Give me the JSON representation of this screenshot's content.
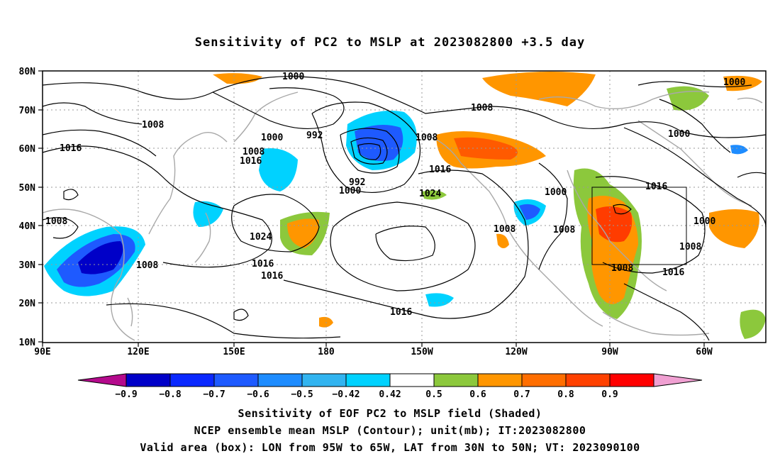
{
  "title": "Sensitivity of PC2 to MSLP at 2023082800 +3.5 day",
  "lat_labels": [
    "80N",
    "70N",
    "60N",
    "50N",
    "40N",
    "30N",
    "20N",
    "10N"
  ],
  "lon_labels": [
    "90E",
    "120E",
    "150E",
    "180",
    "150W",
    "120W",
    "90W",
    "60W"
  ],
  "colorbar": {
    "labels": [
      "-0.9",
      "-0.8",
      "-0.7",
      "-0.6",
      "-0.5",
      "-0.42",
      "0.42",
      "0.5",
      "0.6",
      "0.7",
      "0.8",
      "0.9"
    ],
    "colors": [
      "#b40a8c",
      "#0000c8",
      "#0a28ff",
      "#1e5aff",
      "#1e8cff",
      "#32b4f0",
      "#00d2ff",
      "#ffffff",
      "#8cc83c",
      "#ff9600",
      "#ff6e00",
      "#ff4100",
      "#ff0000",
      "#f0a0d2"
    ]
  },
  "contour_labels": [
    "1000",
    "1008",
    "992",
    "1016",
    "1008",
    "1000",
    "1008",
    "1016",
    "1008",
    "992",
    "1000",
    "1016",
    "1024",
    "1024",
    "1016",
    "1016",
    "1008",
    "1008",
    "1000",
    "1008",
    "1000",
    "1016",
    "1000",
    "1008",
    "1008",
    "1016",
    "1016",
    "1008",
    "1000"
  ],
  "valid_box": {
    "lon_west": 95,
    "lon_east": 65,
    "lat_south": 30,
    "lat_north": 50
  },
  "captions": [
    "Sensitivity of EOF PC2 to MSLP field (Shaded)",
    "NCEP ensemble mean MSLP (Contour); unit(mb); IT:2023082800",
    "Valid area (box): LON from 95W to 65W, LAT from 30N to 50N; VT: 2023090100"
  ]
}
